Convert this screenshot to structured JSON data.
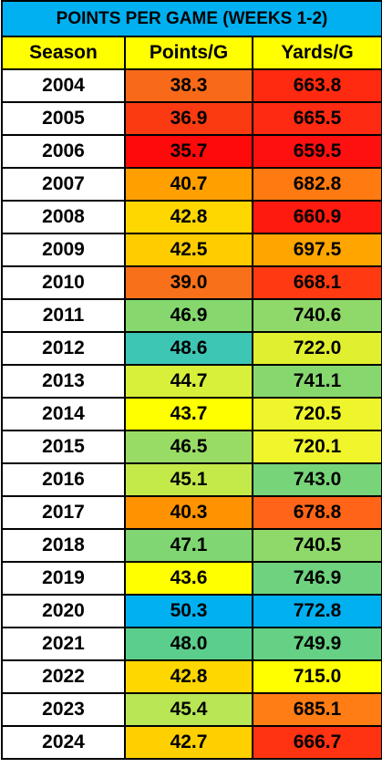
{
  "table": {
    "title": "POINTS PER GAME (WEEKS 1-2)",
    "header": [
      "Season",
      "Points/G",
      "Yards/G"
    ],
    "rows": [
      [
        "2004",
        "38.3",
        "663.8"
      ],
      [
        "2005",
        "36.9",
        "665.5"
      ],
      [
        "2006",
        "35.7",
        "659.5"
      ],
      [
        "2007",
        "40.7",
        "682.8"
      ],
      [
        "2008",
        "42.8",
        "660.9"
      ],
      [
        "2009",
        "42.5",
        "697.5"
      ],
      [
        "2010",
        "39.0",
        "668.1"
      ],
      [
        "2011",
        "46.9",
        "740.6"
      ],
      [
        "2012",
        "48.6",
        "722.0"
      ],
      [
        "2013",
        "44.7",
        "741.1"
      ],
      [
        "2014",
        "43.7",
        "720.5"
      ],
      [
        "2015",
        "46.5",
        "720.1"
      ],
      [
        "2016",
        "45.1",
        "743.0"
      ],
      [
        "2017",
        "40.3",
        "678.8"
      ],
      [
        "2018",
        "47.1",
        "740.5"
      ],
      [
        "2019",
        "43.6",
        "746.9"
      ],
      [
        "2020",
        "50.3",
        "772.8"
      ],
      [
        "2021",
        "48.0",
        "749.9"
      ],
      [
        "2022",
        "42.8",
        "715.0"
      ],
      [
        "2023",
        "45.4",
        "685.1"
      ],
      [
        "2024",
        "42.7",
        "666.7"
      ]
    ],
    "fills": [
      [
        "#f86a1a",
        "#ff2a10"
      ],
      [
        "#fc3a12",
        "#fe2a12"
      ],
      [
        "#ff0a0a",
        "#ff1010"
      ],
      [
        "#ff9f00",
        "#ff7a10"
      ],
      [
        "#ffd700",
        "#ff1a10"
      ],
      [
        "#ffcc00",
        "#ffa500"
      ],
      [
        "#f8701a",
        "#ff3a12"
      ],
      [
        "#86d86e",
        "#8fd96a"
      ],
      [
        "#3ec6b4",
        "#e0f030"
      ],
      [
        "#d8f03a",
        "#86d86e"
      ],
      [
        "#ffff00",
        "#eef52c"
      ],
      [
        "#98dc66",
        "#f0f52c"
      ],
      [
        "#c4ea4a",
        "#78d478"
      ],
      [
        "#ff9200",
        "#ff6418"
      ],
      [
        "#80d672",
        "#8ed96a"
      ],
      [
        "#ffff00",
        "#6ed27e"
      ],
      [
        "#00b0f0",
        "#00b0f0"
      ],
      [
        "#5cce8c",
        "#66d084"
      ],
      [
        "#ffd700",
        "#ffff00"
      ],
      [
        "#b8e654",
        "#ff7d14"
      ],
      [
        "#ffd000",
        "#ff3212"
      ]
    ]
  }
}
